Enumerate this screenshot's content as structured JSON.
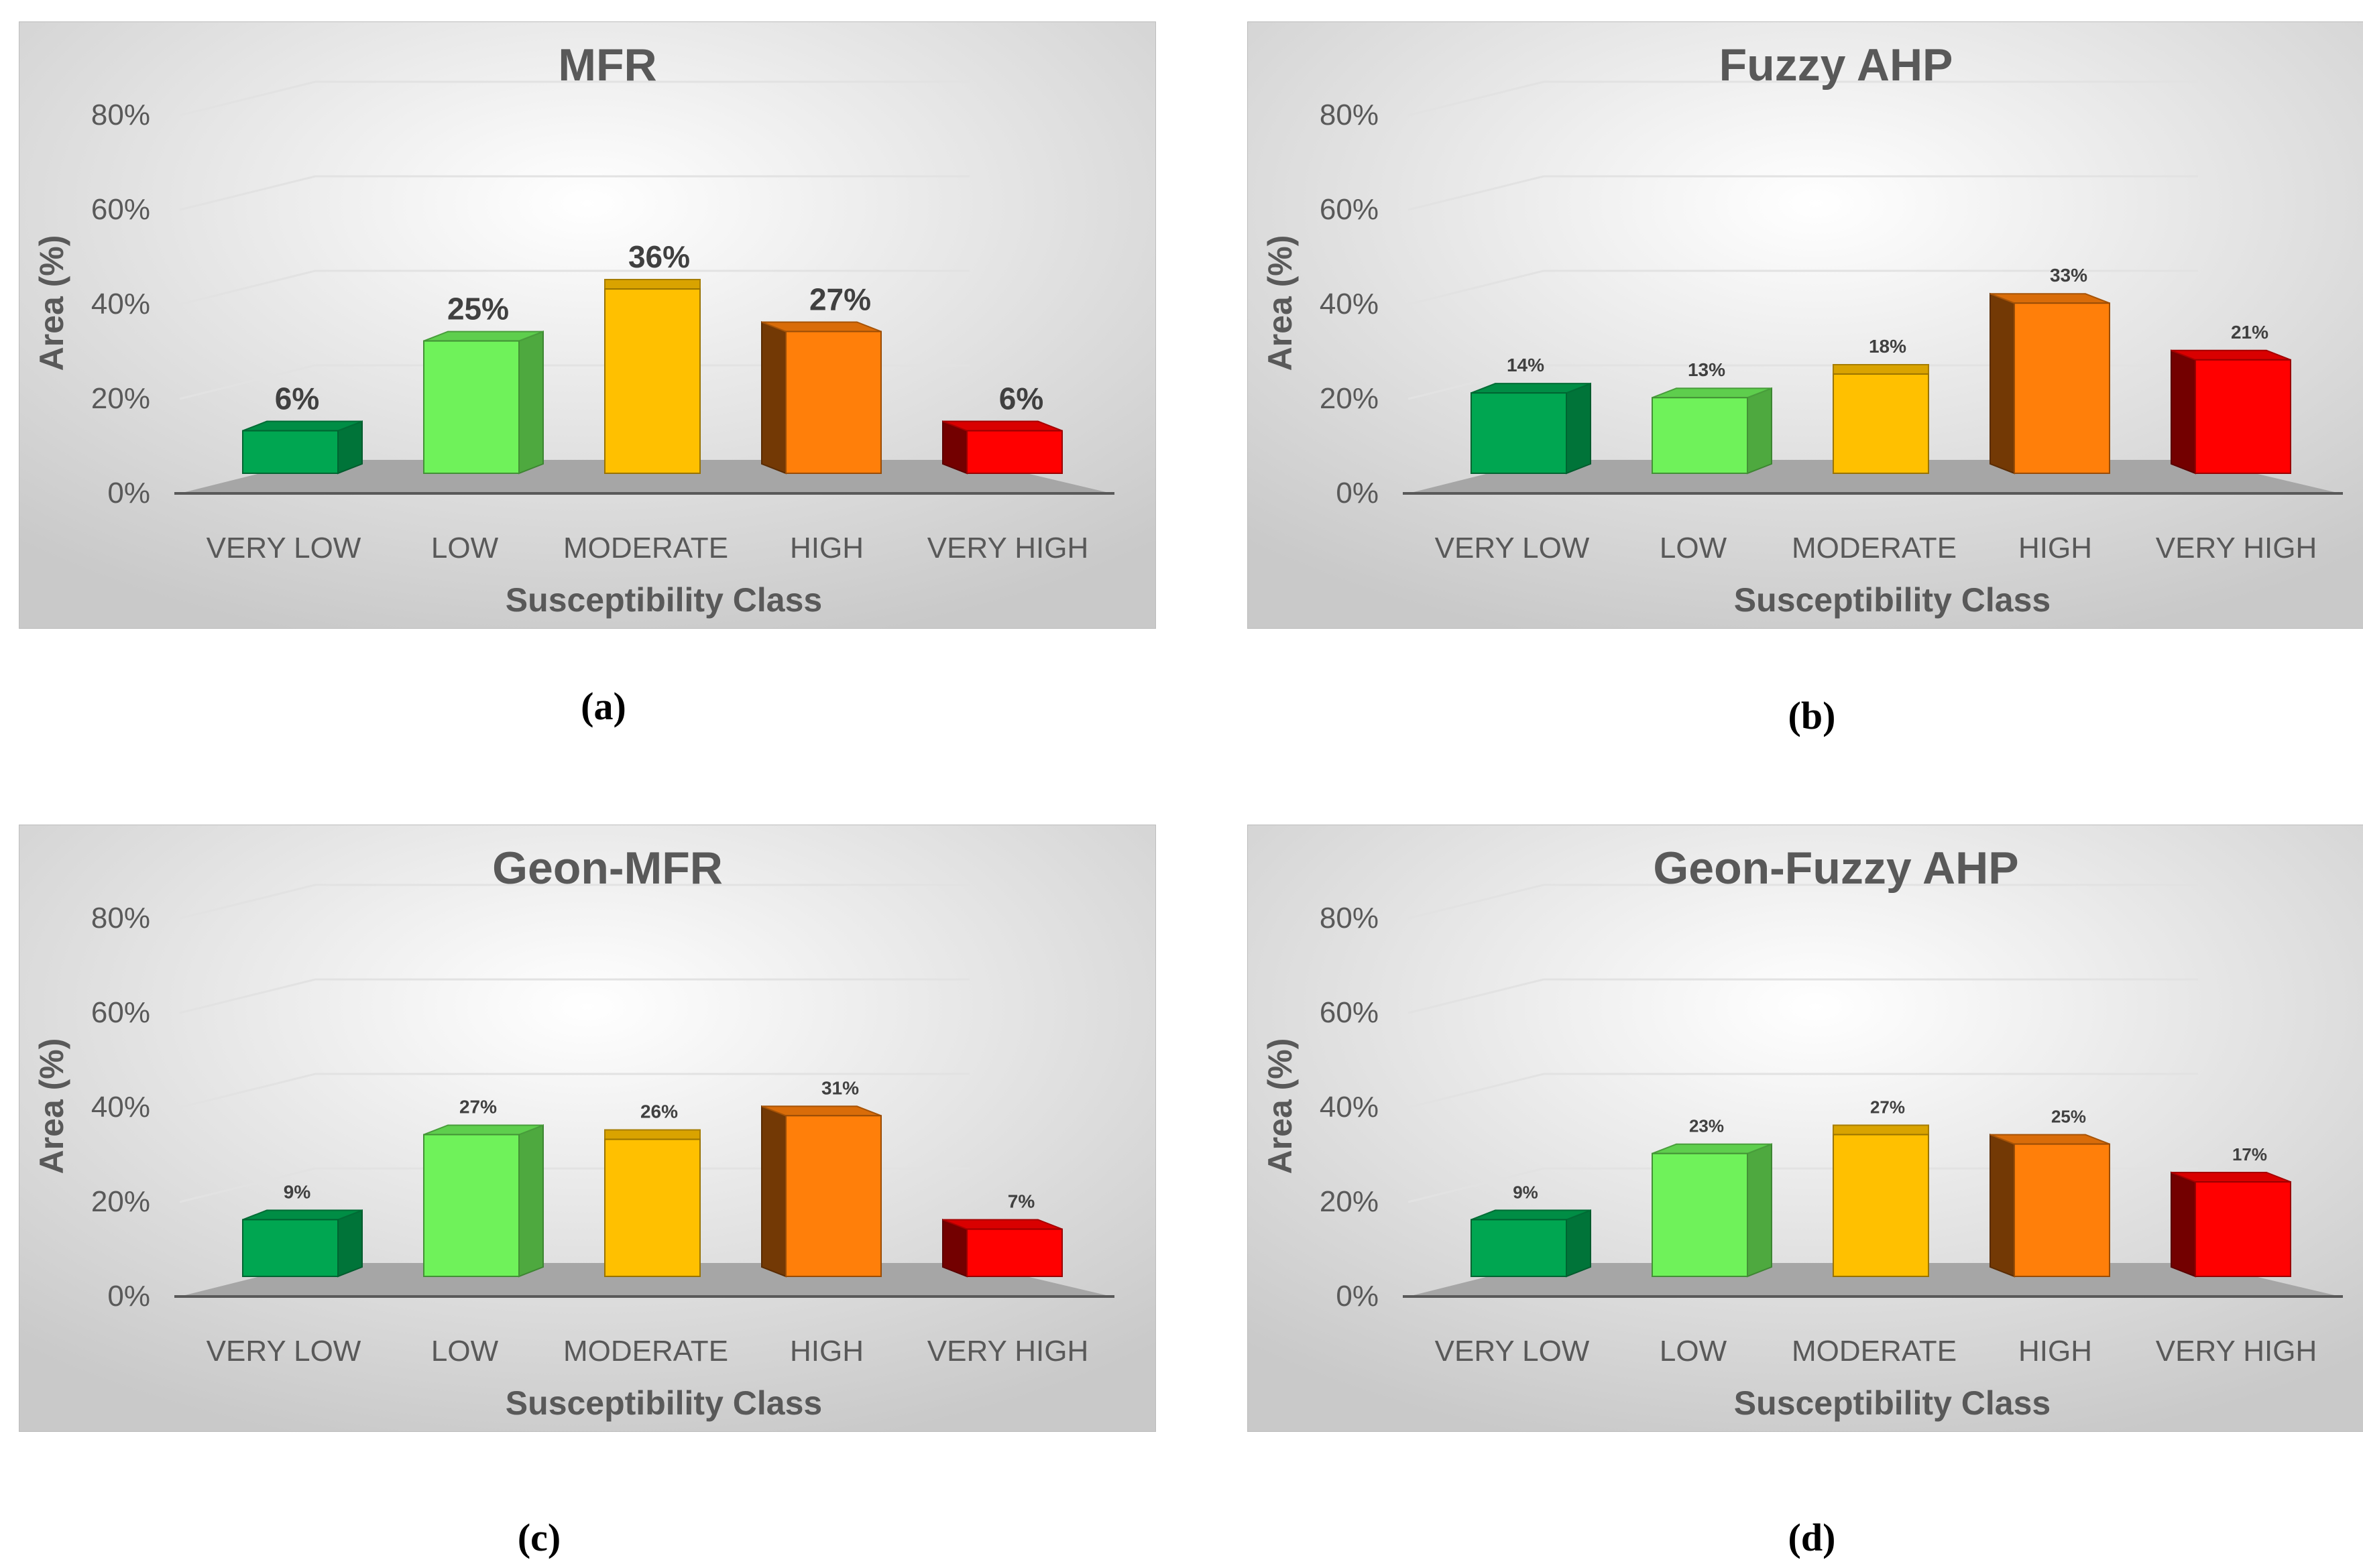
{
  "captions": [
    "(a)",
    "(b)",
    "(c)",
    "(d)"
  ],
  "colors": {
    "very_low": "#00a651",
    "low": "#6ff25a",
    "moderate": "#ffc000",
    "high": "#ff7f0a",
    "very_high": "#ff0000"
  },
  "chart_data": [
    {
      "type": "bar",
      "title": "MFR",
      "xlabel": "Susceptibility Class",
      "ylabel": "Area (%)",
      "ylim": [
        0,
        80
      ],
      "yticks": [
        "0%",
        "20%",
        "40%",
        "60%",
        "80%"
      ],
      "categories": [
        "VERY LOW",
        "LOW",
        "MODERATE",
        "HIGH",
        "VERY HIGH"
      ],
      "values": [
        6,
        25,
        36,
        27,
        6
      ],
      "labels": [
        "6%",
        "25%",
        "36%",
        "27%",
        "6%"
      ],
      "label_size": "large"
    },
    {
      "type": "bar",
      "title": "Fuzzy AHP",
      "xlabel": "Susceptibility Class",
      "ylabel": "Area (%)",
      "ylim": [
        0,
        80
      ],
      "yticks": [
        "0%",
        "20%",
        "40%",
        "60%",
        "80%"
      ],
      "categories": [
        "VERY LOW",
        "LOW",
        "MODERATE",
        "HIGH",
        "VERY HIGH"
      ],
      "values": [
        14,
        13,
        18,
        33,
        21
      ],
      "labels": [
        "14%",
        "13%",
        "18%",
        "33%",
        "21%"
      ],
      "label_size": "small"
    },
    {
      "type": "bar",
      "title": "Geon-MFR",
      "xlabel": "Susceptibility Class",
      "ylabel": "Area (%)",
      "ylim": [
        0,
        80
      ],
      "yticks": [
        "0%",
        "20%",
        "40%",
        "60%",
        "80%"
      ],
      "categories": [
        "VERY LOW",
        "LOW",
        "MODERATE",
        "HIGH",
        "VERY HIGH"
      ],
      "values": [
        9,
        27,
        26,
        31,
        7
      ],
      "labels": [
        "9%",
        "27%",
        "26%",
        "31%",
        "7%"
      ],
      "label_size": "small"
    },
    {
      "type": "bar",
      "title": "Geon-Fuzzy AHP",
      "xlabel": "Susceptibility Class",
      "ylabel": "Area (%)",
      "ylim": [
        0,
        80
      ],
      "yticks": [
        "0%",
        "20%",
        "40%",
        "60%",
        "80%"
      ],
      "categories": [
        "VERY LOW",
        "LOW",
        "MODERATE",
        "HIGH",
        "VERY HIGH"
      ],
      "values": [
        9,
        23,
        27,
        25,
        17
      ],
      "labels": [
        "9%",
        "23%",
        "27%",
        "25%",
        "17%"
      ],
      "label_size": "tiny"
    }
  ]
}
